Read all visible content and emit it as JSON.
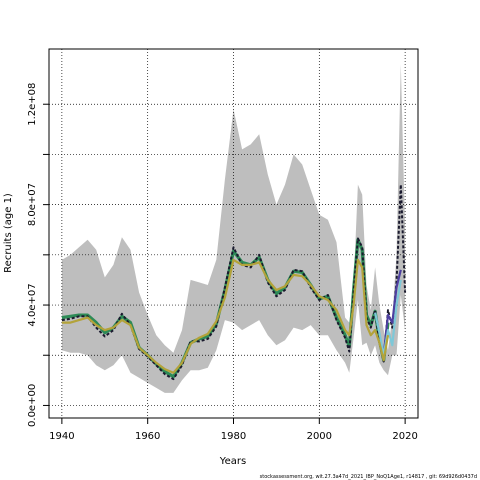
{
  "chart_data": {
    "type": "line",
    "title": "",
    "xlabel": "Years",
    "ylabel": "Recruits (age 1)",
    "xlim": [
      1937,
      2023
    ],
    "ylim": [
      -5000000,
      142000000
    ],
    "grid": true,
    "x_ticks": [
      1940,
      1960,
      1980,
      2000,
      2020
    ],
    "x_tick_labels": [
      "1940",
      "1960",
      "1980",
      "2000",
      "2020"
    ],
    "y_ticks": [
      0,
      20000000,
      40000000,
      60000000,
      80000000,
      100000000,
      120000000
    ],
    "y_tick_labels": [
      "0.0e+00",
      "",
      "4.0e+07",
      "",
      "8.0e+07",
      "",
      "1.2e+08"
    ],
    "band": {
      "x": [
        1940,
        1942,
        1944,
        1946,
        1948,
        1950,
        1952,
        1954,
        1956,
        1958,
        1960,
        1962,
        1964,
        1966,
        1968,
        1970,
        1972,
        1974,
        1976,
        1978,
        1980,
        1982,
        1984,
        1986,
        1988,
        1990,
        1992,
        1994,
        1996,
        1998,
        2000,
        2002,
        2004,
        2006,
        2007,
        2008,
        2009,
        2010,
        2011,
        2012,
        2013,
        2014,
        2015,
        2016,
        2017,
        2018,
        2019,
        2020
      ],
      "upper": [
        58000000,
        60000000,
        63000000,
        66000000,
        62000000,
        51000000,
        56000000,
        67000000,
        62000000,
        45000000,
        36000000,
        28000000,
        24000000,
        21000000,
        30000000,
        50000000,
        49000000,
        48000000,
        58000000,
        90000000,
        118000000,
        102000000,
        104000000,
        108000000,
        92000000,
        80000000,
        88000000,
        100000000,
        96000000,
        86000000,
        76000000,
        74000000,
        65000000,
        35000000,
        33000000,
        48000000,
        88000000,
        84000000,
        48000000,
        38000000,
        55000000,
        40000000,
        30000000,
        22000000,
        35000000,
        60000000,
        136000000,
        70000000
      ],
      "lower": [
        22000000,
        21000000,
        21000000,
        20000000,
        16000000,
        14000000,
        16000000,
        20000000,
        13000000,
        11000000,
        9000000,
        7000000,
        5000000,
        5000000,
        10000000,
        14000000,
        14000000,
        15000000,
        22000000,
        34000000,
        33000000,
        30000000,
        32000000,
        34000000,
        28000000,
        24000000,
        26000000,
        31000000,
        30000000,
        32000000,
        28000000,
        28000000,
        22000000,
        17000000,
        13000000,
        27000000,
        42000000,
        24000000,
        25000000,
        20000000,
        24000000,
        17000000,
        14000000,
        12000000,
        20000000,
        20000000,
        44000000,
        30000000
      ]
    },
    "series": [
      {
        "color": "#2e8b57",
        "x": [
          1940,
          1942,
          1944,
          1946,
          1948,
          1950,
          1952,
          1954,
          1956,
          1958,
          1960,
          1962,
          1964,
          1966,
          1968,
          1970,
          1972,
          1974,
          1976,
          1978,
          1980,
          1982,
          1984,
          1986,
          1988,
          1990,
          1992,
          1994,
          1996,
          1998,
          2000,
          2002,
          2004,
          2006,
          2007,
          2008,
          2009,
          2010,
          2011,
          2012,
          2013,
          2014,
          2015,
          2016
        ],
        "y": [
          35000000,
          35500000,
          36000000,
          36000000,
          33000000,
          29000000,
          31000000,
          35500000,
          33000000,
          23000000,
          20000000,
          16500000,
          13500000,
          11500000,
          17000000,
          25000000,
          26500000,
          27500000,
          32500000,
          46000000,
          61500000,
          57000000,
          56000000,
          59000000,
          50000000,
          44500000,
          47000000,
          53500000,
          53000000,
          48000000,
          42500000,
          43500000,
          35000000,
          28000000,
          23500000,
          46000000,
          66000000,
          62000000,
          36000000,
          32000000,
          37500000,
          26000000,
          18000000,
          33000000
        ]
      },
      {
        "color": "#1a1a2e",
        "x": [
          1940,
          1942,
          1944,
          1946,
          1948,
          1950,
          1952,
          1954,
          1956,
          1958,
          1960,
          1962,
          1964,
          1966,
          1968,
          1970,
          1972,
          1974,
          1976,
          1978,
          1980,
          1982,
          1984,
          1986,
          1988,
          1990,
          1992,
          1994,
          1996,
          1998,
          2000,
          2002,
          2004,
          2006,
          2007,
          2008,
          2009,
          2010,
          2011,
          2012,
          2013,
          2014,
          2015,
          2016,
          2017,
          2018,
          2019,
          2020
        ],
        "y": [
          34000000,
          34500000,
          35500000,
          35500000,
          31000000,
          27500000,
          30000000,
          36500000,
          32000000,
          22500000,
          19500000,
          16000000,
          12500000,
          10500000,
          16000000,
          25500000,
          25500000,
          26500000,
          31500000,
          47000000,
          63000000,
          56000000,
          55000000,
          60000000,
          49000000,
          43500000,
          46000000,
          54000000,
          53500000,
          47000000,
          42000000,
          44000000,
          34000000,
          27000000,
          21500000,
          45000000,
          66500000,
          63000000,
          35000000,
          31000000,
          38000000,
          25000000,
          17500000,
          38000000,
          31000000,
          49000000,
          88000000,
          45000000
        ]
      },
      {
        "color": "#4d3fa0",
        "x": [
          2015,
          2016,
          2017,
          2018,
          2019
        ],
        "y": [
          20000000,
          36000000,
          33000000,
          47000000,
          54000000
        ]
      },
      {
        "color": "#7ec8d8",
        "x": [
          2013,
          2014,
          2015,
          2016,
          2017,
          2018,
          2019
        ],
        "y": [
          37000000,
          29000000,
          20000000,
          30000000,
          24000000,
          40000000,
          50000000
        ]
      },
      {
        "color": "#b3a33a",
        "x": [
          1940,
          1942,
          1944,
          1946,
          1948,
          1950,
          1952,
          1954,
          1956,
          1958,
          1960,
          1962,
          1964,
          1966,
          1968,
          1970,
          1972,
          1974,
          1976,
          1978,
          1980,
          1982,
          1984,
          1986,
          1988,
          1990,
          1992,
          1994,
          1996,
          1998,
          2000,
          2002,
          2004,
          2006,
          2007,
          2008,
          2009,
          2010,
          2011,
          2012,
          2013,
          2014,
          2015,
          2016
        ],
        "y": [
          33000000,
          33000000,
          34000000,
          35000000,
          32000000,
          30000000,
          31000000,
          34000000,
          32000000,
          23000000,
          20000000,
          17000000,
          14500000,
          13000000,
          17000000,
          24500000,
          27000000,
          28500000,
          33500000,
          43000000,
          58000000,
          56000000,
          56000000,
          57000000,
          50000000,
          46000000,
          47500000,
          52000000,
          51500000,
          48000000,
          43500000,
          42000000,
          38000000,
          30000000,
          28000000,
          40000000,
          58000000,
          55000000,
          32000000,
          28000000,
          30000000,
          25000000,
          18000000,
          28000000
        ]
      }
    ]
  },
  "footer_text": "stockassessment.org, wit.27.3a47d_2021_IBP_NoQ1Age1, r14817 , git: 69d926d0437d"
}
